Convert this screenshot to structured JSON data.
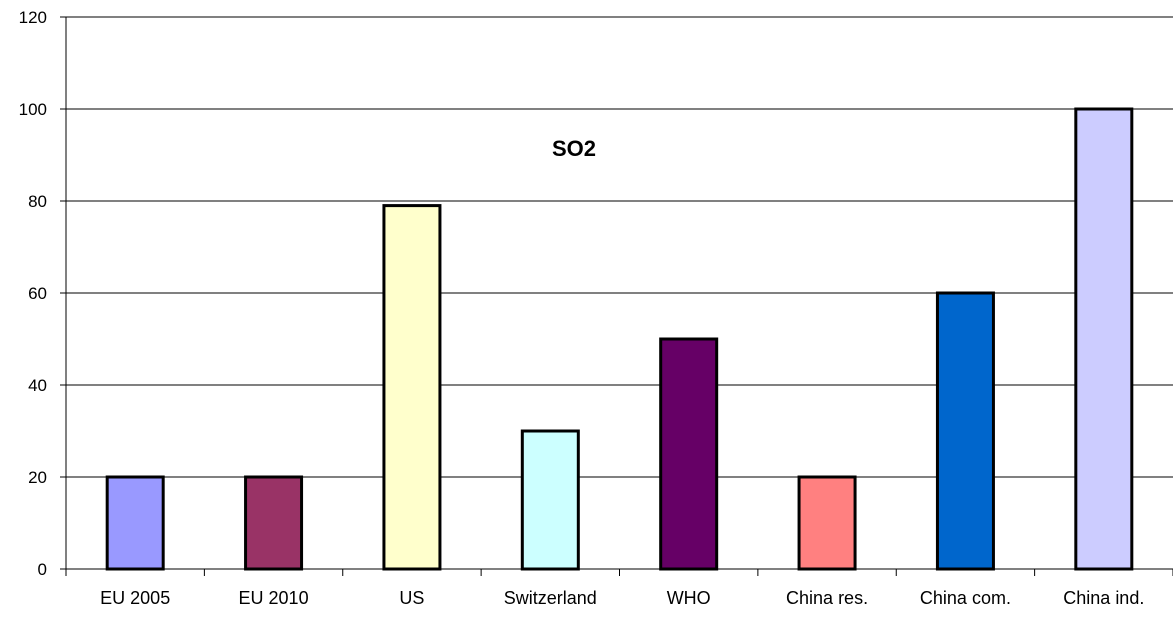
{
  "chart_data": {
    "type": "bar",
    "title": "SO2",
    "xlabel": "",
    "ylabel": "",
    "categories": [
      "EU 2005",
      "EU 2010",
      "US",
      "Switzerland",
      "WHO",
      "China res.",
      "China com.",
      "China ind."
    ],
    "values": [
      20,
      20,
      79,
      30,
      50,
      20,
      60,
      100
    ],
    "colors": [
      "#9999ff",
      "#993366",
      "#ffffcc",
      "#ccffff",
      "#660066",
      "#ff8080",
      "#0066cc",
      "#ccccff"
    ],
    "ylim": [
      0,
      120
    ],
    "yticks": [
      0,
      20,
      40,
      60,
      80,
      100,
      120
    ],
    "grid": true,
    "legend": "none"
  }
}
